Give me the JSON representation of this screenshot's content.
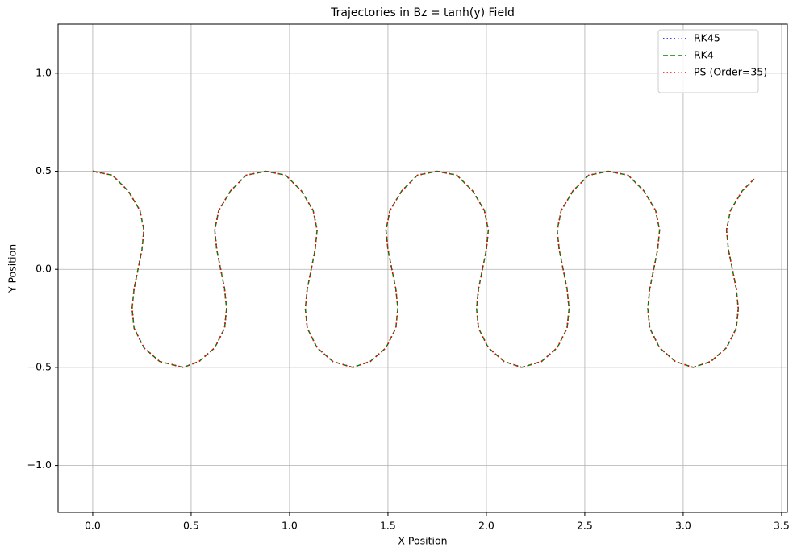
{
  "chart_data": {
    "type": "line",
    "title": "Trajectories in Bz = tanh(y) Field",
    "x_label": "X Position",
    "y_label": "Y Position",
    "x": [
      0,
      0.1,
      0.18,
      0.24,
      0.26,
      0.25,
      0.23,
      0.21,
      0.2,
      0.21,
      0.26,
      0.34,
      0.46,
      0.54,
      0.62,
      0.67,
      0.68,
      0.67,
      0.65,
      0.63,
      0.62,
      0.64,
      0.7,
      0.78,
      0.88,
      0.98,
      1.06,
      1.12,
      1.14,
      1.13,
      1.11,
      1.09,
      1.08,
      1.09,
      1.14,
      1.22,
      1.32,
      1.41,
      1.49,
      1.54,
      1.55,
      1.54,
      1.52,
      1.5,
      1.49,
      1.51,
      1.57,
      1.65,
      1.75,
      1.85,
      1.93,
      1.99,
      2.01,
      2,
      1.98,
      1.96,
      1.95,
      1.96,
      2.01,
      2.09,
      2.18,
      2.28,
      2.36,
      2.41,
      2.42,
      2.41,
      2.39,
      2.37,
      2.36,
      2.38,
      2.44,
      2.52,
      2.62,
      2.72,
      2.8,
      2.86,
      2.88,
      2.87,
      2.85,
      2.83,
      2.82,
      2.83,
      2.88,
      2.96,
      3.05,
      3.14,
      3.22,
      3.27,
      3.28,
      3.27,
      3.25,
      3.23,
      3.22,
      3.24,
      3.3,
      3.36
    ],
    "series": [
      {
        "name": "RK45",
        "color": "#0000ff",
        "linestyle": "dotted",
        "values": [
          0.5,
          0.48,
          0.4,
          0.3,
          0.2,
          0.1,
          0,
          -0.1,
          -0.2,
          -0.3,
          -0.4,
          -0.47,
          -0.5,
          -0.47,
          -0.4,
          -0.3,
          -0.2,
          -0.1,
          0,
          0.1,
          0.2,
          0.3,
          0.4,
          0.48,
          0.5,
          0.48,
          0.4,
          0.3,
          0.2,
          0.1,
          0,
          -0.1,
          -0.2,
          -0.3,
          -0.4,
          -0.47,
          -0.5,
          -0.47,
          -0.4,
          -0.3,
          -0.2,
          -0.1,
          0,
          0.1,
          0.2,
          0.3,
          0.4,
          0.48,
          0.5,
          0.48,
          0.4,
          0.3,
          0.2,
          0.1,
          0,
          -0.1,
          -0.2,
          -0.3,
          -0.4,
          -0.47,
          -0.5,
          -0.47,
          -0.4,
          -0.3,
          -0.2,
          -0.1,
          0,
          0.1,
          0.2,
          0.3,
          0.4,
          0.48,
          0.5,
          0.48,
          0.4,
          0.3,
          0.2,
          0.1,
          0,
          -0.1,
          -0.2,
          -0.3,
          -0.4,
          -0.47,
          -0.5,
          -0.47,
          -0.4,
          -0.3,
          -0.2,
          -0.1,
          0,
          0.1,
          0.2,
          0.3,
          0.4,
          0.46
        ]
      },
      {
        "name": "RK4",
        "color": "#008000",
        "linestyle": "dashed",
        "values": [
          0.5,
          0.48,
          0.4,
          0.3,
          0.2,
          0.1,
          0,
          -0.1,
          -0.2,
          -0.3,
          -0.4,
          -0.47,
          -0.5,
          -0.47,
          -0.4,
          -0.3,
          -0.2,
          -0.1,
          0,
          0.1,
          0.2,
          0.3,
          0.4,
          0.48,
          0.5,
          0.48,
          0.4,
          0.3,
          0.2,
          0.1,
          0,
          -0.1,
          -0.2,
          -0.3,
          -0.4,
          -0.47,
          -0.5,
          -0.47,
          -0.4,
          -0.3,
          -0.2,
          -0.1,
          0,
          0.1,
          0.2,
          0.3,
          0.4,
          0.48,
          0.5,
          0.48,
          0.4,
          0.3,
          0.2,
          0.1,
          0,
          -0.1,
          -0.2,
          -0.3,
          -0.4,
          -0.47,
          -0.5,
          -0.47,
          -0.4,
          -0.3,
          -0.2,
          -0.1,
          0,
          0.1,
          0.2,
          0.3,
          0.4,
          0.48,
          0.5,
          0.48,
          0.4,
          0.3,
          0.2,
          0.1,
          0,
          -0.1,
          -0.2,
          -0.3,
          -0.4,
          -0.47,
          -0.5,
          -0.47,
          -0.4,
          -0.3,
          -0.2,
          -0.1,
          0,
          0.1,
          0.2,
          0.3,
          0.4,
          0.46
        ]
      },
      {
        "name": "PS (Order=35)",
        "color": "#ff0000",
        "linestyle": "dotted",
        "values": [
          0.5,
          0.48,
          0.4,
          0.3,
          0.2,
          0.1,
          0,
          -0.1,
          -0.2,
          -0.3,
          -0.4,
          -0.47,
          -0.5,
          -0.47,
          -0.4,
          -0.3,
          -0.2,
          -0.1,
          0,
          0.1,
          0.2,
          0.3,
          0.4,
          0.48,
          0.5,
          0.48,
          0.4,
          0.3,
          0.2,
          0.1,
          0,
          -0.1,
          -0.2,
          -0.3,
          -0.4,
          -0.47,
          -0.5,
          -0.47,
          -0.4,
          -0.3,
          -0.2,
          -0.1,
          0,
          0.1,
          0.2,
          0.3,
          0.4,
          0.48,
          0.5,
          0.48,
          0.4,
          0.3,
          0.2,
          0.1,
          0,
          -0.1,
          -0.2,
          -0.3,
          -0.4,
          -0.47,
          -0.5,
          -0.47,
          -0.4,
          -0.3,
          -0.2,
          -0.1,
          0,
          0.1,
          0.2,
          0.3,
          0.4,
          0.48,
          0.5,
          0.48,
          0.4,
          0.3,
          0.2,
          0.1,
          0,
          -0.1,
          -0.2,
          -0.3,
          -0.4,
          -0.47,
          -0.5,
          -0.47,
          -0.4,
          -0.3,
          -0.2,
          -0.1,
          0,
          0.1,
          0.2,
          0.3,
          0.4,
          0.46
        ]
      }
    ],
    "xlim": [
      -0.176,
      3.529
    ],
    "ylim": [
      -1.24,
      1.25
    ],
    "xticks": [
      {
        "value": 0,
        "label": "0.0"
      },
      {
        "value": 0.5,
        "label": "0.5"
      },
      {
        "value": 1,
        "label": "1.0"
      },
      {
        "value": 1.5,
        "label": "1.5"
      },
      {
        "value": 2,
        "label": "2.0"
      },
      {
        "value": 2.5,
        "label": "2.5"
      },
      {
        "value": 3,
        "label": "3.0"
      },
      {
        "value": 3.5,
        "label": "3.5"
      }
    ],
    "yticks": [
      {
        "value": -1,
        "label": "−1.0"
      },
      {
        "value": -0.5,
        "label": "−0.5"
      },
      {
        "value": 0,
        "label": "0.0"
      },
      {
        "value": 0.5,
        "label": "0.5"
      },
      {
        "value": 1,
        "label": "1.0"
      }
    ],
    "grid": true,
    "legend": "upper right"
  }
}
